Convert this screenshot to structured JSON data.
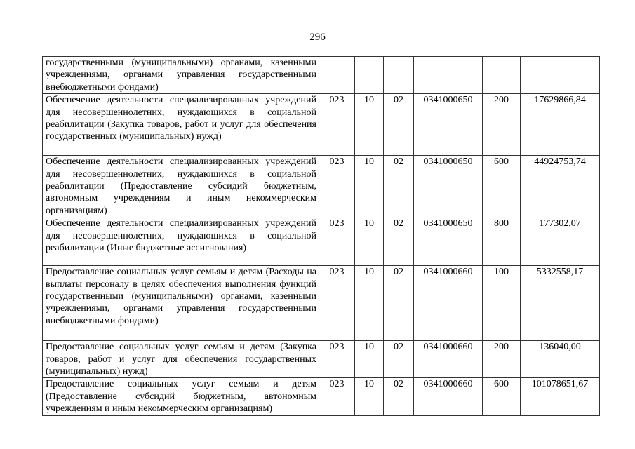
{
  "page_number": "296",
  "rows": [
    {
      "description": "государственными (муниципальными) органами, казенными учреждениями, органами управления государственными внебюджетными фондами)",
      "ved": "",
      "rz": "",
      "pr": "",
      "csr": "",
      "vr": "",
      "sum": ""
    },
    {
      "description": "Обеспечение деятельности специализированных учреждений для несовершеннолетних, нуждающихся в социальной реабилитации (Закупка товаров, работ и услуг для обеспечения государственных (муниципальных) нужд)",
      "ved": "023",
      "rz": "10",
      "pr": "02",
      "csr": "0341000650",
      "vr": "200",
      "sum": "17629866,84"
    },
    {
      "description": "Обеспечение деятельности специализированных учреждений для несовершеннолетних, нуждающихся в социальной реабилитации (Предоставление субсидий бюджетным, автономным учреждениям и иным некоммерческим организациям)",
      "ved": "023",
      "rz": "10",
      "pr": "02",
      "csr": "0341000650",
      "vr": "600",
      "sum": "44924753,74"
    },
    {
      "description": "Обеспечение деятельности специализированных учреждений для несовершеннолетних, нуждающихся в социальной реабилитации (Иные бюджетные ассигнования)",
      "ved": "023",
      "rz": "10",
      "pr": "02",
      "csr": "0341000650",
      "vr": "800",
      "sum": "177302,07"
    },
    {
      "description": "Предоставление социальных услуг семьям и детям (Расходы на выплаты персоналу в целях обеспечения выполнения функций государственными (муниципальными) органами, казенными учреждениями, органами управления государственными внебюджетными фондами)",
      "ved": "023",
      "rz": "10",
      "pr": "02",
      "csr": "0341000660",
      "vr": "100",
      "sum": "5332558,17"
    },
    {
      "description": "Предоставление социальных услуг семьям и детям (Закупка товаров, работ и услуг для обеспечения государственных (муниципальных) нужд)",
      "ved": "023",
      "rz": "10",
      "pr": "02",
      "csr": "0341000660",
      "vr": "200",
      "sum": "136040,00"
    },
    {
      "description": "Предоставление социальных услуг семьям и детям (Предоставление субсидий бюджетным, автономным учреждениям и иным некоммерческим организациям)",
      "ved": "023",
      "rz": "10",
      "pr": "02",
      "csr": "0341000660",
      "vr": "600",
      "sum": "101078651,67"
    }
  ]
}
